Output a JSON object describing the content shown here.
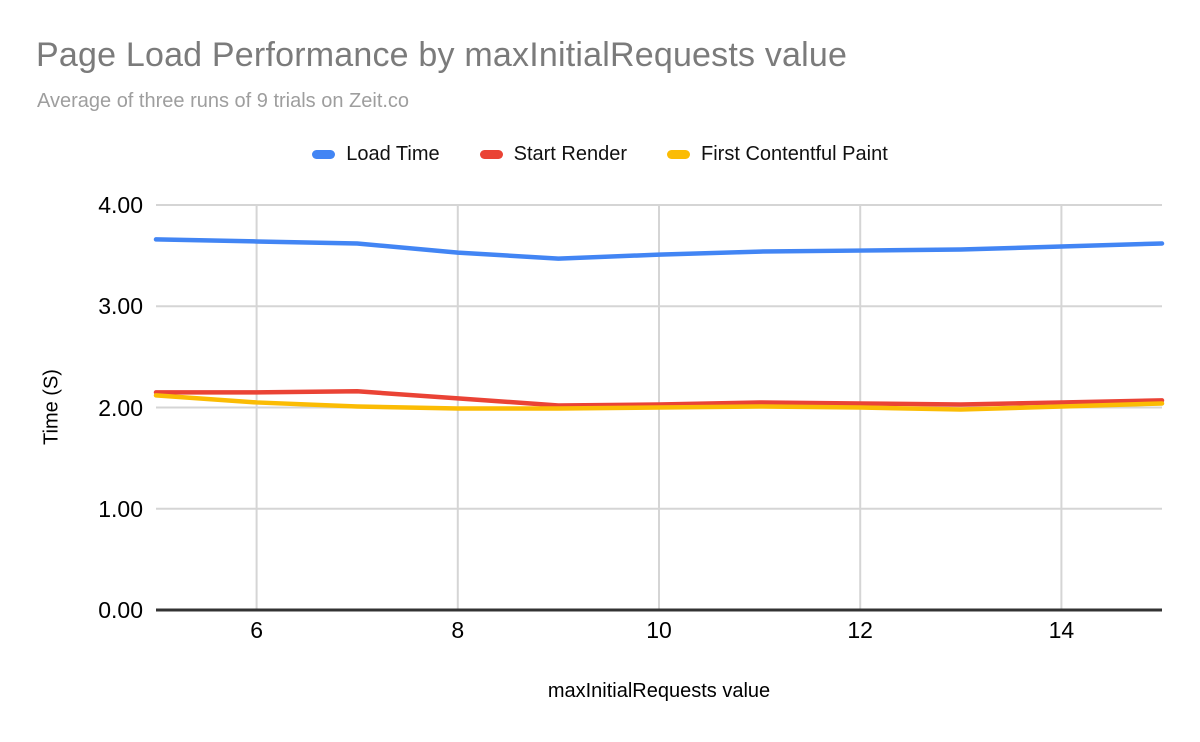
{
  "header": {
    "title": "Page Load Performance by maxInitialRequests value",
    "subtitle": "Average of three runs of 9 trials on Zeit.co"
  },
  "colors": {
    "title_text": "#7b7b7b",
    "subtitle_text": "#9e9e9e",
    "gridline": "#d5d5d5",
    "axis_baseline": "#333333",
    "tick_text": "#000000",
    "series_blue": "#4285F4",
    "series_red": "#EA4335",
    "series_yellow": "#FBBC04"
  },
  "chart_data": {
    "type": "line",
    "title": "Page Load Performance by maxInitialRequests value",
    "subtitle": "Average of three runs of 9 trials on Zeit.co",
    "xlabel": "maxInitialRequests value",
    "ylabel": "Time (S)",
    "xlim": [
      5,
      15
    ],
    "ylim": [
      0,
      4
    ],
    "grid": true,
    "legend_position": "top",
    "x": [
      5,
      6,
      7,
      8,
      9,
      10,
      11,
      12,
      13,
      14,
      15
    ],
    "series": [
      {
        "name": "Load Time",
        "color": "#4285F4",
        "values": [
          3.66,
          3.64,
          3.62,
          3.53,
          3.47,
          3.51,
          3.54,
          3.55,
          3.56,
          3.59,
          3.62
        ]
      },
      {
        "name": "Start Render",
        "color": "#EA4335",
        "values": [
          2.15,
          2.15,
          2.16,
          2.09,
          2.02,
          2.03,
          2.05,
          2.04,
          2.03,
          2.05,
          2.07
        ]
      },
      {
        "name": "First Contentful Paint",
        "color": "#FBBC04",
        "values": [
          2.12,
          2.05,
          2.01,
          1.99,
          1.99,
          2.0,
          2.01,
          2.0,
          1.98,
          2.01,
          2.04
        ]
      }
    ],
    "y_ticks": [
      {
        "value": 4,
        "label": "4.00"
      },
      {
        "value": 3,
        "label": "3.00"
      },
      {
        "value": 2,
        "label": "2.00"
      },
      {
        "value": 1,
        "label": "1.00"
      },
      {
        "value": 0,
        "label": "0.00"
      }
    ],
    "x_ticks": [
      {
        "value": 6,
        "label": "6"
      },
      {
        "value": 8,
        "label": "8"
      },
      {
        "value": 10,
        "label": "10"
      },
      {
        "value": 12,
        "label": "12"
      },
      {
        "value": 14,
        "label": "14"
      }
    ]
  }
}
